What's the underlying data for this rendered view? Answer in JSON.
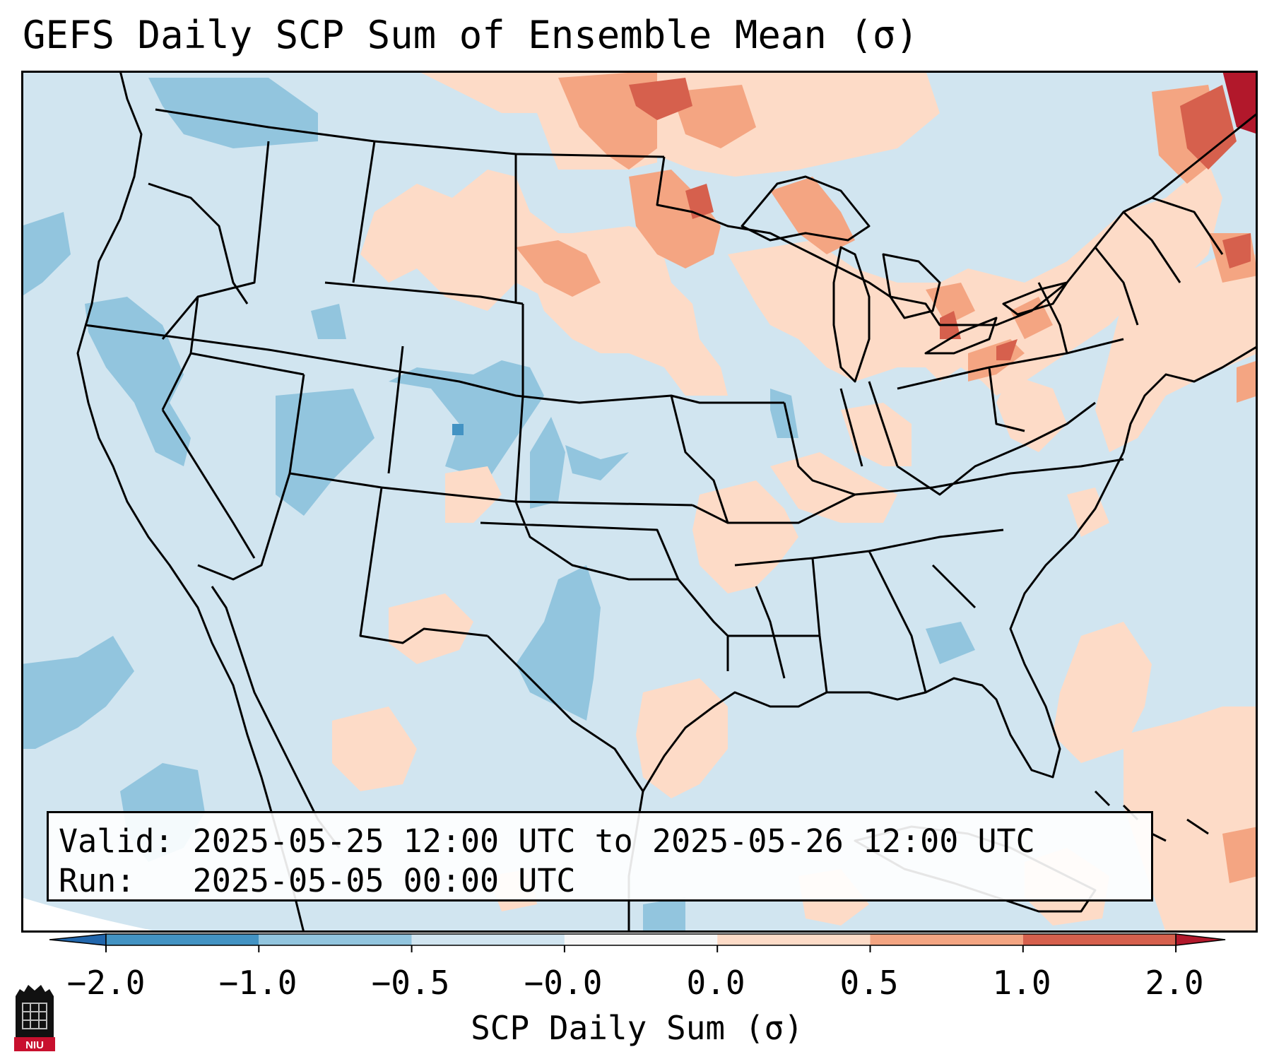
{
  "title": "GEFS Daily SCP Sum of Ensemble Mean (σ)",
  "info": {
    "valid_label": "Valid:",
    "valid_value": "2025-05-25 12:00 UTC to 2025-05-26 12:00 UTC",
    "run_label": "Run:",
    "run_value": "2025-05-05 00:00 UTC"
  },
  "colorbar": {
    "label": "SCP Daily Sum (σ)",
    "ticks": [
      "−2.0",
      "−1.0",
      "−0.5",
      "−0.0",
      "0.0",
      "0.5",
      "1.0",
      "2.0"
    ],
    "colors": [
      "#4393c3",
      "#92c5de",
      "#d1e5f0",
      "#f7f7f7",
      "#fddbc7",
      "#f4a582",
      "#d6604d"
    ],
    "extend_low_color": "#2166ac",
    "extend_high_color": "#b2182b"
  },
  "map": {
    "projection": "Lambert conformal, CONUS",
    "background_value_color": "#d1e5f0",
    "ocean_color": "#d1e5f0",
    "features": [
      "coastlines",
      "US state borders",
      "Canada province borders",
      "Mexico border",
      "Cuba and Caribbean islands"
    ]
  },
  "logo": {
    "text": "NIU",
    "name": "Northern Illinois University"
  }
}
